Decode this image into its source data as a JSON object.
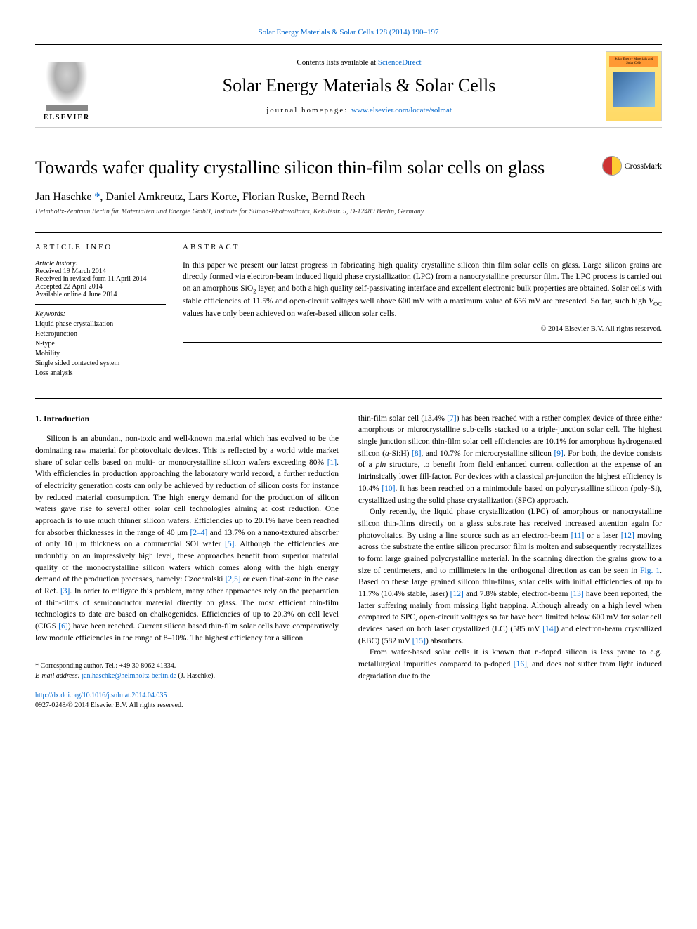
{
  "top_citation": "Solar Energy Materials & Solar Cells 128 (2014) 190–197",
  "header": {
    "elsevier_label": "ELSEVIER",
    "contents_prefix": "Contents lists available at ",
    "contents_link": "ScienceDirect",
    "journal_name": "Solar Energy Materials & Solar Cells",
    "homepage_prefix": "journal homepage: ",
    "homepage_link": "www.elsevier.com/locate/solmat",
    "cover_title": "Solar Energy Materials and Solar Cells"
  },
  "title": "Towards wafer quality crystalline silicon thin-film solar cells on glass",
  "crossmark_label": "CrossMark",
  "authors": {
    "a1": "Jan Haschke",
    "star": "*",
    "a2": ", Daniel Amkreutz, Lars Korte, Florian Ruske, Bernd Rech"
  },
  "affiliation": "Helmholtz-Zentrum Berlin für Materialien und Energie GmbH, Institute for Silicon-Photovoltaics, Kekuléstr. 5, D-12489 Berlin, Germany",
  "article_info": {
    "header": "ARTICLE INFO",
    "history_label": "Article history:",
    "received": "Received 19 March 2014",
    "revised": "Received in revised form 11 April 2014",
    "accepted": "Accepted 22 April 2014",
    "online": "Available online 4 June 2014",
    "keywords_label": "Keywords:",
    "keywords": [
      "Liquid phase crystallization",
      "Heterojunction",
      "N-type",
      "Mobility",
      "Single sided contacted system",
      "Loss analysis"
    ]
  },
  "abstract": {
    "header": "ABSTRACT",
    "text_1": "In this paper we present our latest progress in fabricating high quality crystalline silicon thin film solar cells on glass. Large silicon grains are directly formed via electron-beam induced liquid phase crystallization (LPC) from a nanocrystalline precursor film. The LPC process is carried out on an amorphous SiO",
    "text_2": " layer, and both a high quality self-passivating interface and excellent electronic bulk properties are obtained. Solar cells with stable efficiencies of 11.5% and open-circuit voltages well above 600 mV with a maximum value of 656 mV are presented. So far, such high ",
    "text_3": " values have only been achieved on wafer-based silicon solar cells.",
    "copyright": "© 2014 Elsevier B.V. All rights reserved."
  },
  "section1_heading": "1.  Introduction",
  "col1": {
    "p1a": "Silicon is an abundant, non-toxic and well-known material which has evolved to be the dominating raw material for photovoltaic devices. This is reflected by a world wide market share of solar cells based on multi- or monocrystalline silicon wafers exceeding 80% ",
    "r1": "[1]",
    "p1b": ". With efficiencies in production approaching the laboratory world record, a further reduction of electricity generation costs can only be achieved by reduction of silicon costs for instance by reduced material consumption. The high energy demand for the production of silicon wafers gave rise to several other solar cell technologies aiming at cost reduction. One approach is to use much thinner silicon wafers. Efficiencies up to 20.1% have been reached for absorber thicknesses in the range of 40 μm ",
    "r2": "[2–4]",
    "p1c": " and 13.7% on a nano-textured absorber of only 10 μm thickness on a commercial SOI wafer ",
    "r5": "[5]",
    "p1d": ". Although the efficiencies are undoubtly on an impressively high level, these approaches benefit from superior material quality of the monocrystalline silicon wafers which comes along with the high energy demand of the production processes, namely: Czochralski ",
    "r25": "[2,5]",
    "p1e": " or even float-zone in the case of Ref. ",
    "r3": "[3]",
    "p1f": ". In order to mitigate this problem, many other approaches rely on the preparation of thin-films of semiconductor material directly on glass. The most efficient thin-film technologies to date are based on chalkogenides. Efficiencies of up to 20.3% on cell level (CIGS ",
    "r6": "[6]",
    "p1g": ") have been reached. Current silicon based thin-film solar cells have comparatively low module efficiencies in the range of 8–10%. The highest efficiency for a silicon"
  },
  "col2": {
    "p1a": "thin-film solar cell (13.4% ",
    "r7": "[7]",
    "p1b": ") has been reached with a rather complex device of three either amorphous or microcrystalline sub-cells stacked to a triple-junction solar cell. The highest single junction silicon thin-film solar cell efficiencies are 10.1% for amorphous hydrogenated silicon (",
    "asih": "a",
    "p1c": "-Si:H) ",
    "r8": "[8]",
    "p1d": ", and 10.7% for microcrystalline silicon ",
    "r9": "[9]",
    "p1e": ". For both, the device consists of a ",
    "pin": "pin",
    "p1f": " structure, to benefit from field enhanced current collection at the expense of an intrinsically lower fill-factor. For devices with a classical ",
    "pn": "pn",
    "p1g": "-junction the highest efficiency is 10.4% ",
    "r10": "[10]",
    "p1h": ". It has been reached on a minimodule based on polycrystalline silicon (poly-Si), crystallized using the solid phase crystallization (SPC) approach.",
    "p2a": "Only recently, the liquid phase crystallization (LPC) of amorphous or nanocrystalline silicon thin-films directly on a glass substrate has received increased attention again for photovoltaics. By using a line source such as an electron-beam ",
    "r11": "[11]",
    "p2b": " or a laser ",
    "r12": "[12]",
    "p2c": " moving across the substrate the entire silicon precursor film is molten and subsequently recrystallizes to form large grained polycrystalline material. In the scanning direction the grains grow to a size of centimeters, and to millimeters in the orthogonal direction as can be seen in ",
    "fig1": "Fig. 1",
    "p2d": ". Based on these large grained silicon thin-films, solar cells with initial efficiencies of up to 11.7% (10.4% stable, laser) ",
    "r12b": "[12]",
    "p2e": " and 7.8% stable, electron-beam ",
    "r13": "[13]",
    "p2f": " have been reported, the latter suffering mainly from missing light trapping. Although already on a high level when compared to SPC, open-circuit voltages so far have been limited below 600 mV for solar cell devices based on both laser crystallized (LC) (585 mV ",
    "r14": "[14]",
    "p2g": ") and electron-beam crystallized (EBC) (582 mV ",
    "r15": "[15]",
    "p2h": ") absorbers.",
    "p3a": "From wafer-based solar cells it is known that n-doped silicon is less prone to e.g. metallurgical impurities compared to p-doped ",
    "r16": "[16]",
    "p3b": ", and does not suffer from light induced degradation due to the"
  },
  "footnote": {
    "corr": "* Corresponding author. Tel.: +49 30 8062 41334.",
    "email_label": "E-mail address: ",
    "email": "jan.haschke@helmholtz-berlin.de",
    "email_suffix": " (J. Haschke)."
  },
  "doi": {
    "link": "http://dx.doi.org/10.1016/j.solmat.2014.04.035",
    "issn_line": "0927-0248/© 2014 Elsevier B.V. All rights reserved."
  }
}
